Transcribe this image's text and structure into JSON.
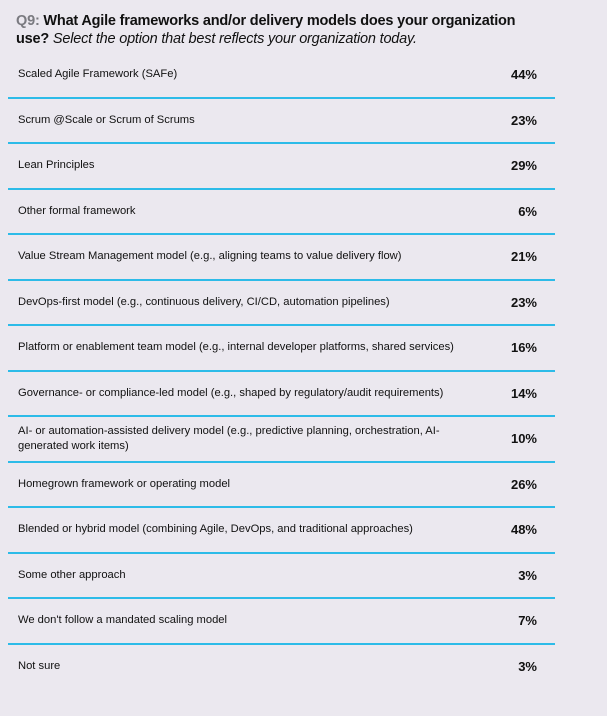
{
  "question": {
    "number": "Q9:",
    "text": "What Agile frameworks and/or delivery models does your organization use?",
    "instruction": "Select the option that best reflects your organization today."
  },
  "chart_data": {
    "type": "table",
    "categories": [
      "Scaled Agile Framework (SAFe)",
      "Scrum @Scale or Scrum of Scrums",
      "Lean Principles",
      "Other formal framework",
      "Value Stream Management model (e.g., aligning teams to value delivery flow)",
      "DevOps-first model (e.g., continuous delivery, CI/CD, automation pipelines)",
      "Platform or enablement team model (e.g., internal developer platforms, shared services)",
      "Governance- or compliance-led model (e.g., shaped by regulatory/audit requirements)",
      "AI- or automation-assisted delivery model (e.g., predictive planning, orchestration, AI-generated work items)",
      "Homegrown framework or operating model",
      "Blended or hybrid model (combining Agile, DevOps, and traditional approaches)",
      "Some other approach",
      "We don't follow a mandated scaling model",
      "Not sure"
    ],
    "values": [
      "44%",
      "23%",
      "29%",
      "6%",
      "21%",
      "23%",
      "16%",
      "14%",
      "10%",
      "26%",
      "48%",
      "3%",
      "7%",
      "3%"
    ],
    "colors": {
      "divider": "#2dbbe8",
      "background": "#ebe8ef"
    }
  }
}
